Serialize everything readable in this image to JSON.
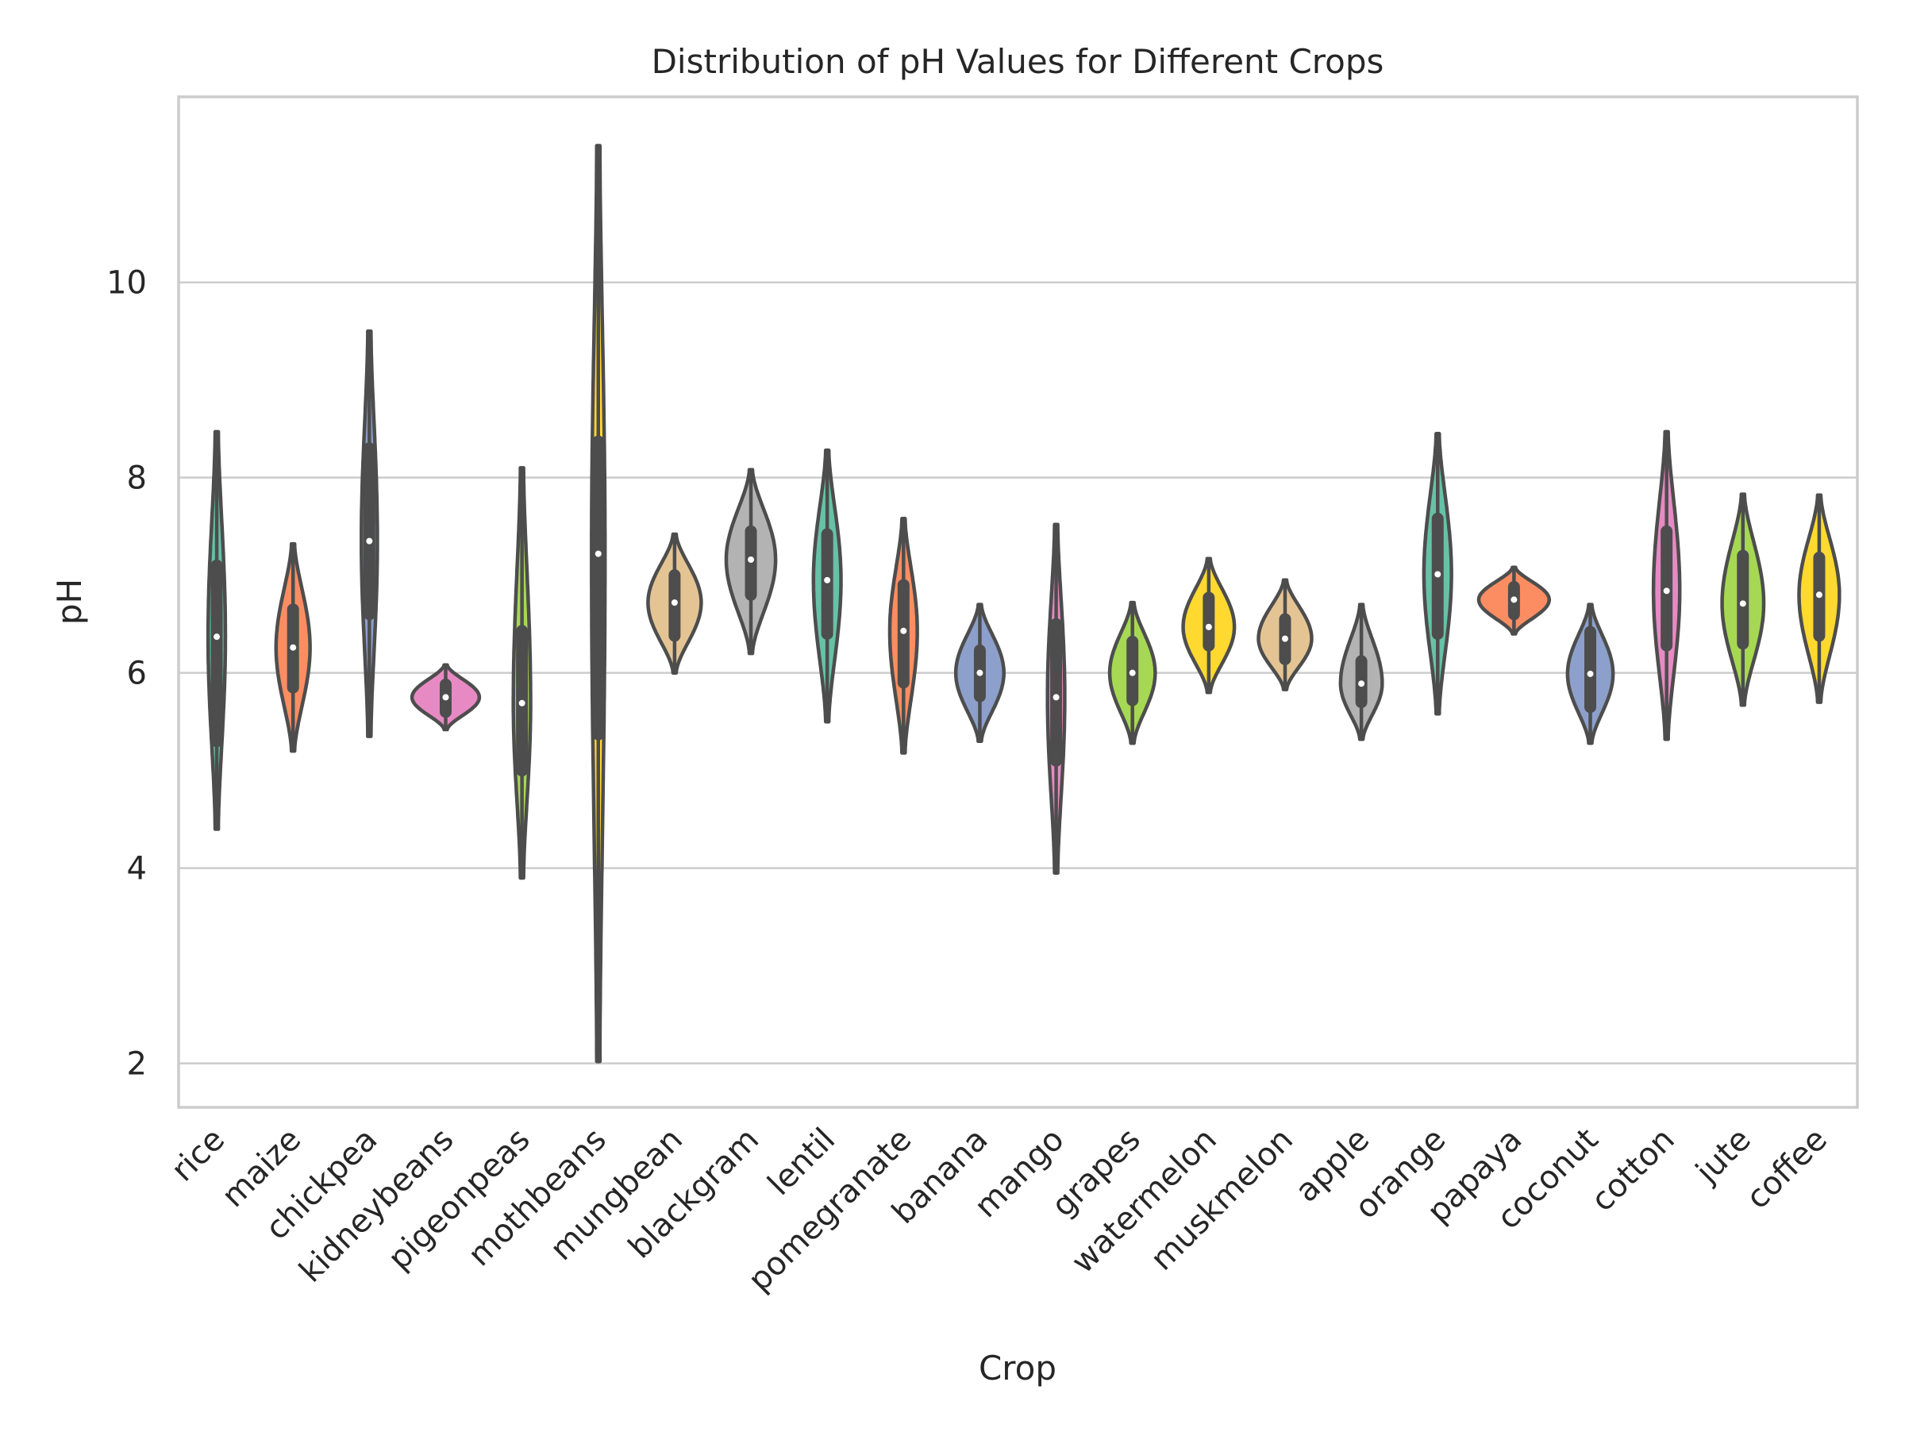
{
  "chart_data": {
    "type": "violin",
    "title": "Distribution of pH Values for Different Crops",
    "xlabel": "Crop",
    "ylabel": "pH",
    "ylim": [
      1.55,
      11.9
    ],
    "yticks": [
      2,
      4,
      6,
      8,
      10
    ],
    "grid": "horizontal",
    "legend": "none",
    "categories": [
      "rice",
      "maize",
      "chickpea",
      "kidneybeans",
      "pigeonpeas",
      "mothbeans",
      "mungbean",
      "blackgram",
      "lentil",
      "pomegranate",
      "banana",
      "mango",
      "grapes",
      "watermelon",
      "muskmelon",
      "apple",
      "orange",
      "papaya",
      "coconut",
      "cotton",
      "jute",
      "coffee"
    ],
    "colors": [
      "#66c2a5",
      "#fc8d62",
      "#8da0cb",
      "#e78ac3",
      "#a6d854",
      "#ffd92f",
      "#e5c494",
      "#b3b3b3",
      "#66c2a5",
      "#fc8d62",
      "#8da0cb",
      "#e78ac3",
      "#a6d854",
      "#ffd92f",
      "#e5c494",
      "#b3b3b3",
      "#66c2a5",
      "#fc8d62",
      "#8da0cb",
      "#e78ac3",
      "#a6d854",
      "#ffd92f"
    ],
    "series": [
      {
        "crop": "rice",
        "min": 4.4,
        "q1": 5.3,
        "median": 6.37,
        "q3": 7.1,
        "max": 8.47,
        "width": 0.22
      },
      {
        "crop": "maize",
        "min": 5.2,
        "q1": 5.85,
        "median": 6.26,
        "q3": 6.65,
        "max": 7.32,
        "width": 0.48
      },
      {
        "crop": "chickpea",
        "min": 5.35,
        "q1": 6.6,
        "median": 7.35,
        "q3": 8.3,
        "max": 9.5,
        "width": 0.2
      },
      {
        "crop": "kidneybeans",
        "min": 5.42,
        "q1": 5.6,
        "median": 5.75,
        "q3": 5.88,
        "max": 6.08,
        "width": 1.0
      },
      {
        "crop": "pigeonpeas",
        "min": 3.9,
        "q1": 5.0,
        "median": 5.69,
        "q3": 6.43,
        "max": 8.1,
        "width": 0.22
      },
      {
        "crop": "mothbeans",
        "min": 2.02,
        "q1": 5.37,
        "median": 7.22,
        "q3": 8.37,
        "max": 11.4,
        "width": 0.16
      },
      {
        "crop": "mungbean",
        "min": 6.0,
        "q1": 6.38,
        "median": 6.72,
        "q3": 7.0,
        "max": 7.42,
        "width": 0.78
      },
      {
        "crop": "blackgram",
        "min": 6.2,
        "q1": 6.8,
        "median": 7.16,
        "q3": 7.45,
        "max": 8.08,
        "width": 0.72
      },
      {
        "crop": "lentil",
        "min": 5.5,
        "q1": 6.4,
        "median": 6.95,
        "q3": 7.42,
        "max": 8.28,
        "width": 0.38
      },
      {
        "crop": "pomegranate",
        "min": 5.18,
        "q1": 5.9,
        "median": 6.43,
        "q3": 6.9,
        "max": 7.58,
        "width": 0.38
      },
      {
        "crop": "banana",
        "min": 5.3,
        "q1": 5.76,
        "median": 6.0,
        "q3": 6.23,
        "max": 6.7,
        "width": 0.7
      },
      {
        "crop": "mango",
        "min": 3.95,
        "q1": 5.1,
        "median": 5.75,
        "q3": 6.5,
        "max": 7.52,
        "width": 0.22
      },
      {
        "crop": "grapes",
        "min": 5.28,
        "q1": 5.72,
        "median": 6.0,
        "q3": 6.32,
        "max": 6.72,
        "width": 0.66
      },
      {
        "crop": "watermelon",
        "min": 5.8,
        "q1": 6.28,
        "median": 6.47,
        "q3": 6.77,
        "max": 7.17,
        "width": 0.75
      },
      {
        "crop": "muskmelon",
        "min": 5.83,
        "q1": 6.14,
        "median": 6.35,
        "q3": 6.55,
        "max": 6.95,
        "width": 0.78
      },
      {
        "crop": "apple",
        "min": 5.32,
        "q1": 5.7,
        "median": 5.89,
        "q3": 6.12,
        "max": 6.7,
        "width": 0.6
      },
      {
        "crop": "orange",
        "min": 5.58,
        "q1": 6.4,
        "median": 7.01,
        "q3": 7.58,
        "max": 8.45,
        "width": 0.38
      },
      {
        "crop": "papaya",
        "min": 6.4,
        "q1": 6.6,
        "median": 6.75,
        "q3": 6.88,
        "max": 7.08,
        "width": 1.05
      },
      {
        "crop": "coconut",
        "min": 5.28,
        "q1": 5.65,
        "median": 5.99,
        "q3": 6.42,
        "max": 6.7,
        "width": 0.66
      },
      {
        "crop": "cotton",
        "min": 5.32,
        "q1": 6.28,
        "median": 6.84,
        "q3": 7.45,
        "max": 8.47,
        "width": 0.36
      },
      {
        "crop": "jute",
        "min": 5.67,
        "q1": 6.3,
        "median": 6.71,
        "q3": 7.2,
        "max": 7.83,
        "width": 0.6
      },
      {
        "crop": "coffee",
        "min": 5.7,
        "q1": 6.38,
        "median": 6.8,
        "q3": 7.18,
        "max": 7.82,
        "width": 0.58
      }
    ]
  }
}
